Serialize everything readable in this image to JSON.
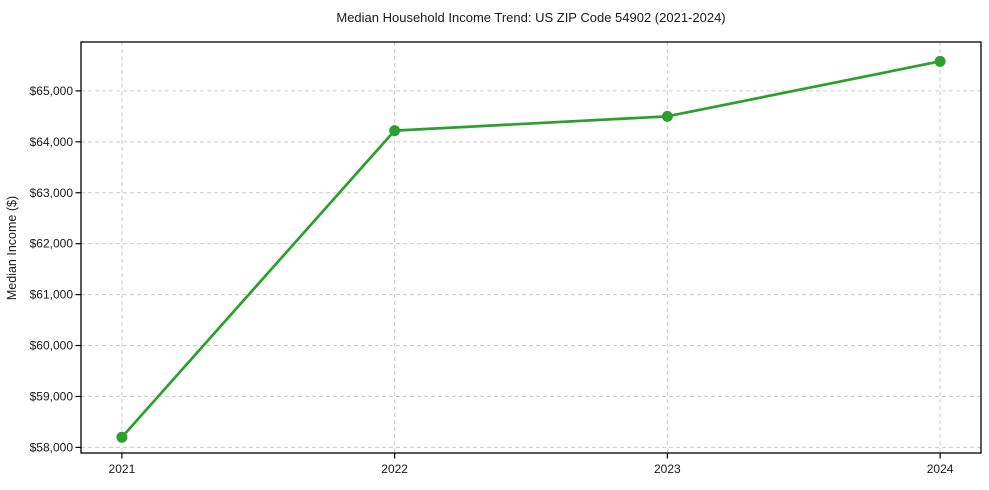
{
  "chart_data": {
    "type": "line",
    "title": "Median Household Income Trend: US ZIP Code 54902 (2021-2024)",
    "xlabel": "",
    "ylabel": "Median Income ($)",
    "x": [
      2021,
      2022,
      2023,
      2024
    ],
    "xtick_labels": [
      "2021",
      "2022",
      "2023",
      "2024"
    ],
    "series": [
      {
        "name": "Median household income",
        "values": [
          58200,
          64220,
          64500,
          65580
        ]
      }
    ],
    "yticks": [
      58000,
      59000,
      60000,
      61000,
      62000,
      63000,
      64000,
      65000
    ],
    "ytick_labels": [
      "$58,000",
      "$59,000",
      "$60,000",
      "$61,000",
      "$62,000",
      "$63,000",
      "$64,000",
      "$65,000"
    ],
    "ylim": [
      57890,
      65960
    ],
    "xlim": [
      2020.85,
      2024.15
    ],
    "grid": "dashed",
    "legend": "none",
    "line_color": "#2ca02c",
    "marker": "circle",
    "grid_color": "#cccccc",
    "spine_color": "#000000",
    "text_color": "#1a1a1a",
    "background_color": "#ffffff"
  }
}
